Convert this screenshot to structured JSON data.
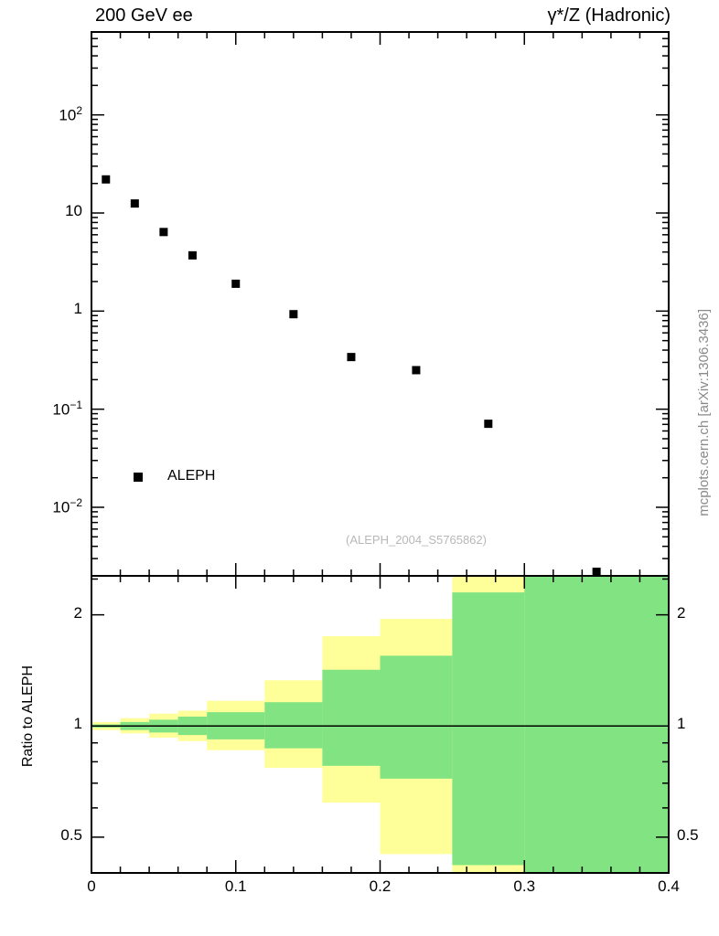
{
  "chart_data": {
    "type": "scatter",
    "title_left": "200 GeV ee",
    "title_right": "γ*/Z (Hadronic)",
    "watermark": "(ALEPH_2004_S5765862)",
    "side_label": "mcplots.cern.ch [arXiv:1306.3436]",
    "legend": {
      "entries": [
        {
          "label": "ALEPH",
          "marker": "filled-square",
          "color": "#000000"
        }
      ]
    },
    "x_axis": {
      "lim": [
        0,
        0.4
      ],
      "major_ticks": [
        0,
        0.1,
        0.2,
        0.3,
        0.4
      ],
      "tick_labels": [
        "0",
        "0.1",
        "0.2",
        "0.3",
        "0.4"
      ],
      "minor_step": 0.02
    },
    "main_panel": {
      "yscale": "log",
      "ylim": [
        0.002,
        700
      ],
      "grid": false,
      "yticks": [
        {
          "value": 100,
          "base": "10",
          "sup": "2"
        },
        {
          "value": 10,
          "base": "10",
          "sup": ""
        },
        {
          "value": 1,
          "base": "1",
          "sup": ""
        },
        {
          "value": 0.1,
          "base": "10",
          "sup": "−1"
        },
        {
          "value": 0.01,
          "base": "10",
          "sup": "−2"
        }
      ],
      "series": [
        {
          "name": "ALEPH",
          "marker": "filled-square",
          "color": "#000000",
          "x": [
            0.01,
            0.03,
            0.05,
            0.07,
            0.1,
            0.14,
            0.18,
            0.225,
            0.275,
            0.35
          ],
          "y": [
            22,
            12.5,
            6.4,
            3.7,
            1.9,
            0.93,
            0.34,
            0.25,
            0.071,
            0.0022
          ]
        }
      ]
    },
    "ratio_panel": {
      "ylabel": "Ratio to ALEPH",
      "yscale": "log",
      "ylim": [
        0.4,
        2.55
      ],
      "ref_line": 1,
      "yticks": [
        {
          "value": 2,
          "label": "2"
        },
        {
          "value": 1,
          "label": "1"
        },
        {
          "value": 0.5,
          "label": "0.5"
        }
      ],
      "minor_yticks": [
        0.4,
        0.6,
        0.7,
        0.8,
        0.9,
        2.5
      ],
      "bin_edges": [
        0,
        0.02,
        0.04,
        0.06,
        0.08,
        0.12,
        0.16,
        0.2,
        0.25,
        0.3,
        0.4
      ],
      "bands": [
        {
          "name": "outer-uncertainty",
          "color": "#ffff99",
          "lo": [
            0.975,
            0.955,
            0.93,
            0.91,
            0.86,
            0.77,
            0.62,
            0.45,
            0.38,
            0.35
          ],
          "hi": [
            1.025,
            1.05,
            1.08,
            1.1,
            1.17,
            1.33,
            1.75,
            1.95,
            2.55,
            2.6
          ]
        },
        {
          "name": "inner-uncertainty",
          "color": "#82e382",
          "lo": [
            0.99,
            0.975,
            0.96,
            0.945,
            0.92,
            0.87,
            0.78,
            0.72,
            0.42,
            0.35
          ],
          "hi": [
            1.01,
            1.025,
            1.04,
            1.06,
            1.09,
            1.16,
            1.42,
            1.55,
            2.3,
            2.6
          ]
        }
      ]
    }
  }
}
